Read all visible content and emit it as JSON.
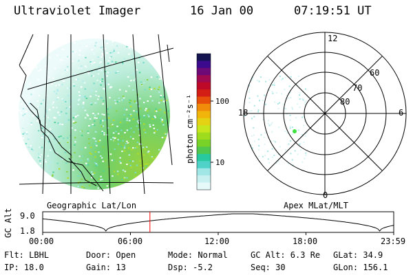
{
  "header": {
    "instrument": "Ultraviolet Imager",
    "date": "16 Jan 00",
    "time": "07:19:51 UT"
  },
  "colorbar": {
    "unit_label": "photon cm⁻²s⁻¹",
    "tick_labels": [
      "100",
      "10"
    ],
    "colors": [
      "#e6fafa",
      "#c8f0f0",
      "#a0e6e6",
      "#50d2c8",
      "#28c8a0",
      "#50c850",
      "#78d228",
      "#a0dc1e",
      "#c8e61e",
      "#e6d214",
      "#f0b40a",
      "#f08c0a",
      "#e6500a",
      "#d21e14",
      "#be0a28",
      "#a00a50",
      "#6e0a78",
      "#3c0a8c",
      "#141450"
    ]
  },
  "panels": {
    "left_caption": "Geographic Lat/Lon",
    "right_caption": "Apex MLat/MLT",
    "polar_labels": {
      "top": "12",
      "right": "6",
      "bottom": "0",
      "left": "18",
      "ring_60": "60",
      "ring_70": "70",
      "ring_80": "80"
    }
  },
  "timeline": {
    "y_axis_label": "GC Alt",
    "y_max_label": "9.0",
    "y_min_label": "1.8",
    "x_labels": [
      "00:00",
      "06:00",
      "12:00",
      "18:00",
      "23:59"
    ],
    "current_time_fraction": 0.3054,
    "marker_color": "#ff0000"
  },
  "info": {
    "flt": "Flt: LBHL",
    "ip": "IP: 18.0",
    "door": "Door: Open",
    "gain": "Gain: 13",
    "mode": "Mode: Normal",
    "dsp": "Dsp:   -5.2",
    "gc_alt": "GC Alt: 6.3 Re",
    "seq": "Seq: 30",
    "glat": "GLat:  34.9",
    "glon": "GLon: 156.1"
  }
}
